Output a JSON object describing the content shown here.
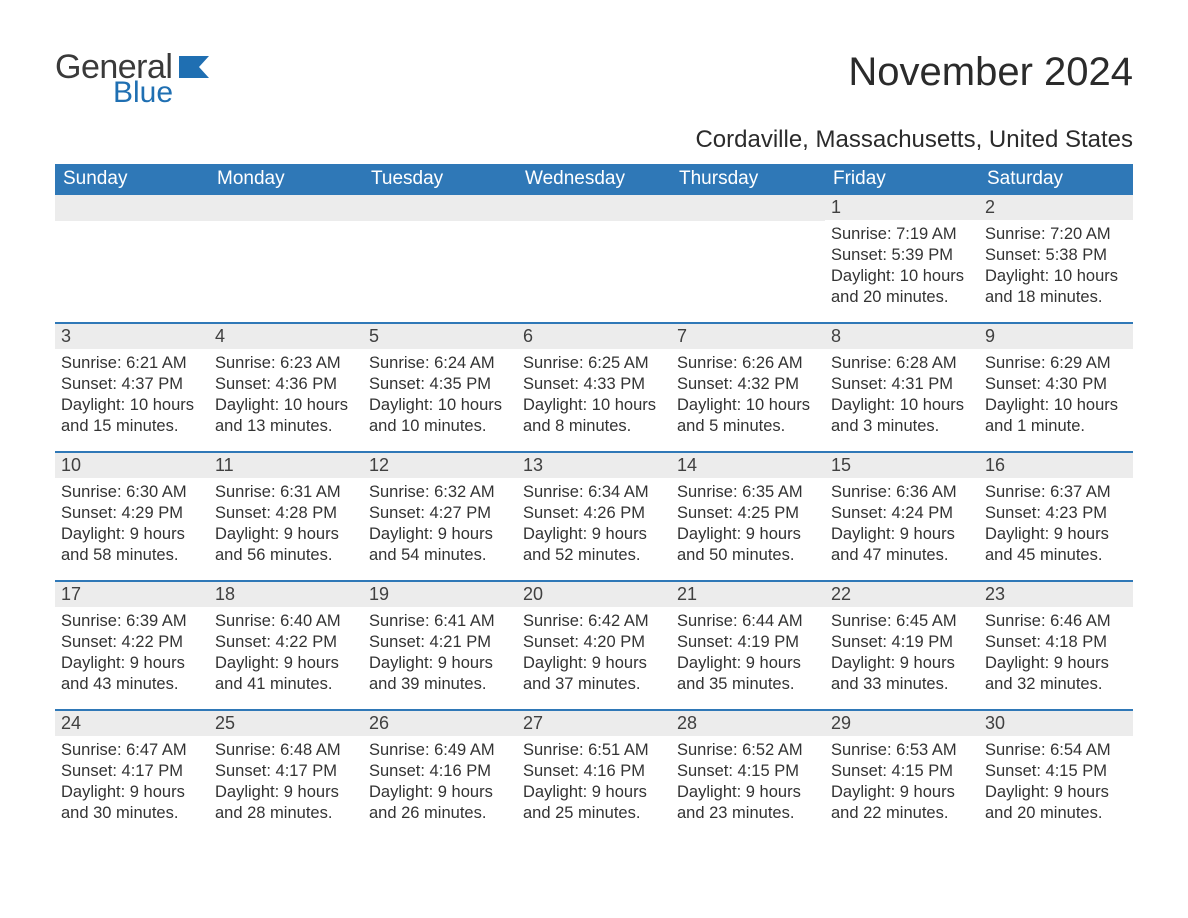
{
  "brand": {
    "word1": "General",
    "word2": "Blue",
    "icon_color": "#1f6fb2"
  },
  "title": "November 2024",
  "subtitle": "Cordaville, Massachusetts, United States",
  "colors": {
    "header_bg": "#2f78b7",
    "header_text": "#ffffff",
    "daynum_bg": "#ececec",
    "body_text": "#333333",
    "rule": "#2f78b7"
  },
  "typography": {
    "title_fontsize": 40,
    "subtitle_fontsize": 24,
    "header_fontsize": 19,
    "daynum_fontsize": 18,
    "body_fontsize": 16.5
  },
  "day_headers": [
    "Sunday",
    "Monday",
    "Tuesday",
    "Wednesday",
    "Thursday",
    "Friday",
    "Saturday"
  ],
  "weeks": [
    [
      null,
      null,
      null,
      null,
      null,
      {
        "n": 1,
        "sunrise": "7:19 AM",
        "sunset": "5:39 PM",
        "daylight": "10 hours and 20 minutes."
      },
      {
        "n": 2,
        "sunrise": "7:20 AM",
        "sunset": "5:38 PM",
        "daylight": "10 hours and 18 minutes."
      }
    ],
    [
      {
        "n": 3,
        "sunrise": "6:21 AM",
        "sunset": "4:37 PM",
        "daylight": "10 hours and 15 minutes."
      },
      {
        "n": 4,
        "sunrise": "6:23 AM",
        "sunset": "4:36 PM",
        "daylight": "10 hours and 13 minutes."
      },
      {
        "n": 5,
        "sunrise": "6:24 AM",
        "sunset": "4:35 PM",
        "daylight": "10 hours and 10 minutes."
      },
      {
        "n": 6,
        "sunrise": "6:25 AM",
        "sunset": "4:33 PM",
        "daylight": "10 hours and 8 minutes."
      },
      {
        "n": 7,
        "sunrise": "6:26 AM",
        "sunset": "4:32 PM",
        "daylight": "10 hours and 5 minutes."
      },
      {
        "n": 8,
        "sunrise": "6:28 AM",
        "sunset": "4:31 PM",
        "daylight": "10 hours and 3 minutes."
      },
      {
        "n": 9,
        "sunrise": "6:29 AM",
        "sunset": "4:30 PM",
        "daylight": "10 hours and 1 minute."
      }
    ],
    [
      {
        "n": 10,
        "sunrise": "6:30 AM",
        "sunset": "4:29 PM",
        "daylight": "9 hours and 58 minutes."
      },
      {
        "n": 11,
        "sunrise": "6:31 AM",
        "sunset": "4:28 PM",
        "daylight": "9 hours and 56 minutes."
      },
      {
        "n": 12,
        "sunrise": "6:32 AM",
        "sunset": "4:27 PM",
        "daylight": "9 hours and 54 minutes."
      },
      {
        "n": 13,
        "sunrise": "6:34 AM",
        "sunset": "4:26 PM",
        "daylight": "9 hours and 52 minutes."
      },
      {
        "n": 14,
        "sunrise": "6:35 AM",
        "sunset": "4:25 PM",
        "daylight": "9 hours and 50 minutes."
      },
      {
        "n": 15,
        "sunrise": "6:36 AM",
        "sunset": "4:24 PM",
        "daylight": "9 hours and 47 minutes."
      },
      {
        "n": 16,
        "sunrise": "6:37 AM",
        "sunset": "4:23 PM",
        "daylight": "9 hours and 45 minutes."
      }
    ],
    [
      {
        "n": 17,
        "sunrise": "6:39 AM",
        "sunset": "4:22 PM",
        "daylight": "9 hours and 43 minutes."
      },
      {
        "n": 18,
        "sunrise": "6:40 AM",
        "sunset": "4:22 PM",
        "daylight": "9 hours and 41 minutes."
      },
      {
        "n": 19,
        "sunrise": "6:41 AM",
        "sunset": "4:21 PM",
        "daylight": "9 hours and 39 minutes."
      },
      {
        "n": 20,
        "sunrise": "6:42 AM",
        "sunset": "4:20 PM",
        "daylight": "9 hours and 37 minutes."
      },
      {
        "n": 21,
        "sunrise": "6:44 AM",
        "sunset": "4:19 PM",
        "daylight": "9 hours and 35 minutes."
      },
      {
        "n": 22,
        "sunrise": "6:45 AM",
        "sunset": "4:19 PM",
        "daylight": "9 hours and 33 minutes."
      },
      {
        "n": 23,
        "sunrise": "6:46 AM",
        "sunset": "4:18 PM",
        "daylight": "9 hours and 32 minutes."
      }
    ],
    [
      {
        "n": 24,
        "sunrise": "6:47 AM",
        "sunset": "4:17 PM",
        "daylight": "9 hours and 30 minutes."
      },
      {
        "n": 25,
        "sunrise": "6:48 AM",
        "sunset": "4:17 PM",
        "daylight": "9 hours and 28 minutes."
      },
      {
        "n": 26,
        "sunrise": "6:49 AM",
        "sunset": "4:16 PM",
        "daylight": "9 hours and 26 minutes."
      },
      {
        "n": 27,
        "sunrise": "6:51 AM",
        "sunset": "4:16 PM",
        "daylight": "9 hours and 25 minutes."
      },
      {
        "n": 28,
        "sunrise": "6:52 AM",
        "sunset": "4:15 PM",
        "daylight": "9 hours and 23 minutes."
      },
      {
        "n": 29,
        "sunrise": "6:53 AM",
        "sunset": "4:15 PM",
        "daylight": "9 hours and 22 minutes."
      },
      {
        "n": 30,
        "sunrise": "6:54 AM",
        "sunset": "4:15 PM",
        "daylight": "9 hours and 20 minutes."
      }
    ]
  ],
  "labels": {
    "sunrise": "Sunrise:",
    "sunset": "Sunset:",
    "daylight": "Daylight:"
  }
}
